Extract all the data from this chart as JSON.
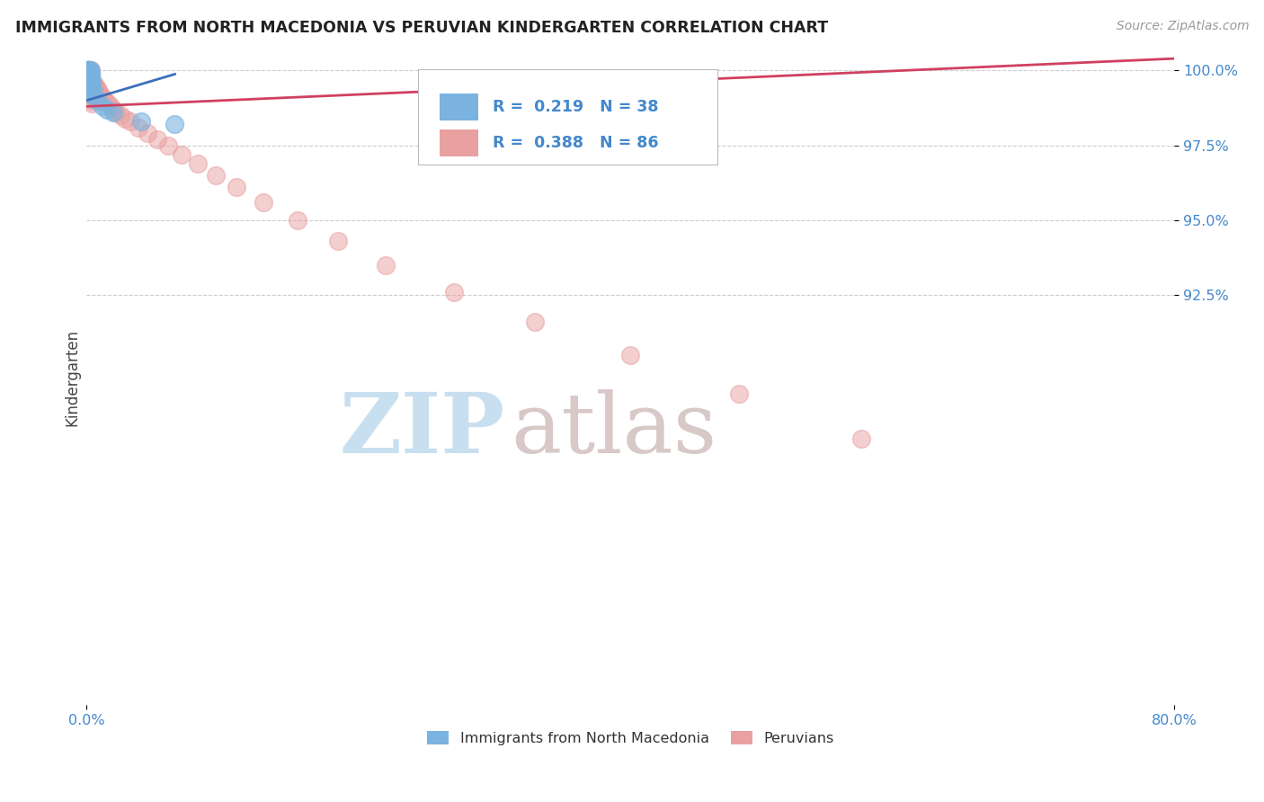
{
  "title": "IMMIGRANTS FROM NORTH MACEDONIA VS PERUVIAN KINDERGARTEN CORRELATION CHART",
  "source": "Source: ZipAtlas.com",
  "ylabel": "Kindergarten",
  "legend1_label": "Immigrants from North Macedonia",
  "legend2_label": "Peruvians",
  "R1": 0.219,
  "N1": 38,
  "R2": 0.388,
  "N2": 86,
  "xlim": [
    0.0,
    0.8
  ],
  "ylim": [
    0.788,
    1.007
  ],
  "ytick_vals": [
    1.0,
    0.975,
    0.95,
    0.925
  ],
  "ytick_labels": [
    "100.0%",
    "97.5%",
    "95.0%",
    "92.5%"
  ],
  "xtick_vals": [
    0.0,
    0.8
  ],
  "xtick_labels": [
    "0.0%",
    "80.0%"
  ],
  "color_blue": "#7ab3e0",
  "color_pink": "#e8a0a0",
  "color_blue_line": "#3c6fba",
  "color_pink_line": "#d04060",
  "watermark_zip": "ZIP",
  "watermark_atlas": "atlas",
  "watermark_color_zip": "#c8dff0",
  "watermark_color_atlas": "#d8c8c8",
  "background_color": "#ffffff",
  "grid_color": "#cccccc",
  "blue_scatter_x": [
    0.001,
    0.002,
    0.001,
    0.003,
    0.001,
    0.002,
    0.003,
    0.001,
    0.002,
    0.001,
    0.002,
    0.003,
    0.001,
    0.002,
    0.001,
    0.003,
    0.002,
    0.001,
    0.002,
    0.001,
    0.003,
    0.002,
    0.001,
    0.002,
    0.004,
    0.003,
    0.002,
    0.001,
    0.003,
    0.002,
    0.005,
    0.004,
    0.008,
    0.012,
    0.015,
    0.02,
    0.04,
    0.065
  ],
  "blue_scatter_y": [
    1.0,
    1.0,
    0.999,
    1.0,
    1.0,
    0.999,
    0.999,
    1.0,
    1.0,
    0.999,
    0.999,
    0.998,
    0.999,
    0.998,
    0.998,
    0.998,
    0.997,
    0.997,
    0.997,
    0.997,
    0.997,
    0.996,
    0.996,
    0.996,
    0.996,
    0.995,
    0.995,
    0.995,
    0.995,
    0.994,
    0.993,
    0.992,
    0.99,
    0.988,
    0.987,
    0.986,
    0.983,
    0.982
  ],
  "pink_scatter_x": [
    0.001,
    0.001,
    0.002,
    0.001,
    0.002,
    0.001,
    0.003,
    0.001,
    0.002,
    0.001,
    0.002,
    0.001,
    0.002,
    0.001,
    0.003,
    0.001,
    0.002,
    0.003,
    0.001,
    0.002,
    0.001,
    0.002,
    0.001,
    0.002,
    0.003,
    0.001,
    0.002,
    0.001,
    0.002,
    0.001,
    0.003,
    0.002,
    0.001,
    0.002,
    0.001,
    0.003,
    0.004,
    0.005,
    0.004,
    0.005,
    0.006,
    0.006,
    0.007,
    0.008,
    0.008,
    0.009,
    0.01,
    0.012,
    0.014,
    0.016,
    0.018,
    0.02,
    0.022,
    0.025,
    0.028,
    0.032,
    0.038,
    0.045,
    0.052,
    0.06,
    0.07,
    0.082,
    0.095,
    0.11,
    0.13,
    0.155,
    0.185,
    0.22,
    0.27,
    0.33,
    0.4,
    0.48,
    0.57,
    0.001,
    0.002,
    0.003,
    0.001,
    0.002,
    0.003,
    0.004,
    0.003,
    0.002,
    0.001,
    0.002,
    0.003,
    0.004
  ],
  "pink_scatter_y": [
    1.0,
    1.0,
    1.0,
    1.0,
    1.0,
    1.0,
    1.0,
    0.999,
    0.999,
    0.999,
    0.999,
    0.999,
    0.999,
    0.999,
    0.999,
    0.999,
    0.999,
    0.999,
    0.998,
    0.998,
    0.998,
    0.998,
    0.998,
    0.998,
    0.998,
    0.998,
    0.997,
    0.997,
    0.997,
    0.997,
    0.997,
    0.997,
    0.997,
    0.997,
    0.997,
    0.996,
    0.996,
    0.996,
    0.996,
    0.995,
    0.995,
    0.995,
    0.994,
    0.994,
    0.993,
    0.993,
    0.992,
    0.991,
    0.99,
    0.989,
    0.988,
    0.987,
    0.986,
    0.985,
    0.984,
    0.983,
    0.981,
    0.979,
    0.977,
    0.975,
    0.972,
    0.969,
    0.965,
    0.961,
    0.956,
    0.95,
    0.943,
    0.935,
    0.926,
    0.916,
    0.905,
    0.892,
    0.877,
    0.998,
    0.997,
    0.996,
    0.996,
    0.995,
    0.994,
    0.993,
    0.993,
    0.992,
    0.992,
    0.991,
    0.99,
    0.989
  ],
  "blue_line_x": [
    0.0,
    0.065
  ],
  "blue_line_y": [
    0.99,
    0.9988
  ],
  "pink_line_x": [
    0.0,
    0.8
  ],
  "pink_line_y": [
    0.988,
    1.004
  ]
}
